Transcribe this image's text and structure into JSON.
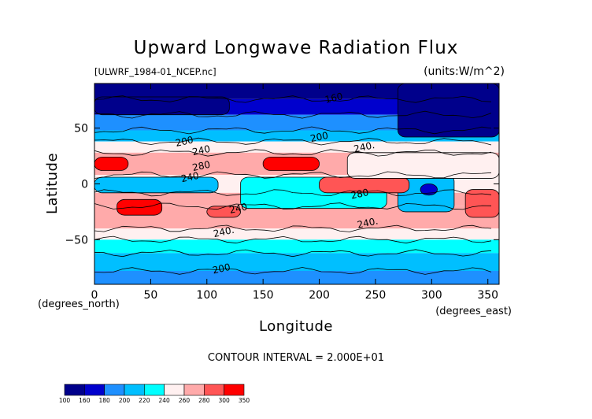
{
  "chart_data": {
    "type": "heatmap",
    "title": "Upward Longwave Radiation Flux",
    "file_label": "[ULWRF_1984-01_NCEP.nc]",
    "units_label": "(units:W/m^2)",
    "xlabel": "Longitude",
    "ylabel": "Latitude",
    "x_unit_label": "(degrees_east)",
    "y_unit_label": "(degrees_north)",
    "xlim": [
      0,
      360
    ],
    "ylim": [
      -90,
      90
    ],
    "x_ticks": [
      0,
      50,
      100,
      150,
      200,
      250,
      300,
      350
    ],
    "y_ticks": [
      -50,
      0,
      50
    ],
    "contour_interval_text": "CONTOUR INTERVAL = 2.000E+01",
    "contour_labels": [
      {
        "text": "160",
        "lon": 213,
        "lat": 77
      },
      {
        "text": "200",
        "lon": 200,
        "lat": 42
      },
      {
        "text": "200",
        "lon": 80,
        "lat": 38
      },
      {
        "text": "240",
        "lon": 95,
        "lat": 30
      },
      {
        "text": "240.",
        "lon": 240,
        "lat": 33
      },
      {
        "text": "280",
        "lon": 95,
        "lat": 16
      },
      {
        "text": "240",
        "lon": 85,
        "lat": 6
      },
      {
        "text": "280",
        "lon": 236,
        "lat": -9
      },
      {
        "text": "240",
        "lon": 128,
        "lat": -22
      },
      {
        "text": "240.",
        "lon": 243,
        "lat": -35
      },
      {
        "text": "240.",
        "lon": 115,
        "lat": -43
      },
      {
        "text": "200",
        "lon": 113,
        "lat": -76
      }
    ],
    "colorbar": {
      "boundaries": [
        "100",
        "160",
        "180",
        "200",
        "220",
        "240",
        "260",
        "280",
        "300",
        "350"
      ],
      "colors": [
        "#00008b",
        "#0000cd",
        "#1e90ff",
        "#00bfff",
        "#00ffff",
        "#fff0f0",
        "#ffaaaa",
        "#ff5555",
        "#ff0000"
      ]
    },
    "latitude_bands": [
      {
        "lat_min": 76,
        "lat_max": 90,
        "value": 140
      },
      {
        "lat_min": 62,
        "lat_max": 76,
        "value": 170
      },
      {
        "lat_min": 48,
        "lat_max": 62,
        "value": 190
      },
      {
        "lat_min": 38,
        "lat_max": 48,
        "value": 210
      },
      {
        "lat_min": 28,
        "lat_max": 38,
        "value": 250
      },
      {
        "lat_min": 8,
        "lat_max": 28,
        "value": 275
      },
      {
        "lat_min": -8,
        "lat_max": 8,
        "value": 250
      },
      {
        "lat_min": -20,
        "lat_max": -8,
        "value": 265
      },
      {
        "lat_min": -40,
        "lat_max": -20,
        "value": 275
      },
      {
        "lat_min": -50,
        "lat_max": -40,
        "value": 245
      },
      {
        "lat_min": -62,
        "lat_max": -50,
        "value": 225
      },
      {
        "lat_min": -78,
        "lat_max": -62,
        "value": 210
      },
      {
        "lat_min": -90,
        "lat_max": -78,
        "value": 195
      }
    ],
    "regions": [
      {
        "lon_min": 130,
        "lon_max": 260,
        "lat_min": -22,
        "lat_max": 6,
        "value": 230
      },
      {
        "lon_min": 0,
        "lon_max": 110,
        "lat_min": -8,
        "lat_max": 6,
        "value": 210
      },
      {
        "lon_min": 270,
        "lon_max": 320,
        "lat_min": -25,
        "lat_max": 8,
        "value": 200
      },
      {
        "lon_min": 290,
        "lon_max": 305,
        "lat_min": -10,
        "lat_max": 0,
        "value": 170
      },
      {
        "lon_min": 150,
        "lon_max": 200,
        "lat_min": 12,
        "lat_max": 24,
        "value": 310
      },
      {
        "lon_min": 0,
        "lon_max": 30,
        "lat_min": 12,
        "lat_max": 24,
        "value": 310
      },
      {
        "lon_min": 20,
        "lon_max": 60,
        "lat_min": -28,
        "lat_max": -14,
        "value": 305
      },
      {
        "lon_min": 100,
        "lon_max": 130,
        "lat_min": -30,
        "lat_max": -20,
        "value": 285
      },
      {
        "lon_min": 200,
        "lon_max": 280,
        "lat_min": -8,
        "lat_max": 6,
        "value": 285
      },
      {
        "lon_min": 330,
        "lon_max": 360,
        "lat_min": -30,
        "lat_max": -5,
        "value": 285
      },
      {
        "lon_min": 225,
        "lon_max": 360,
        "lat_min": 5,
        "lat_max": 28,
        "value": 250
      },
      {
        "lon_min": 270,
        "lon_max": 360,
        "lat_min": 42,
        "lat_max": 90,
        "value": 140
      },
      {
        "lon_min": 0,
        "lon_max": 120,
        "lat_min": 62,
        "lat_max": 78,
        "value": 150
      }
    ]
  }
}
